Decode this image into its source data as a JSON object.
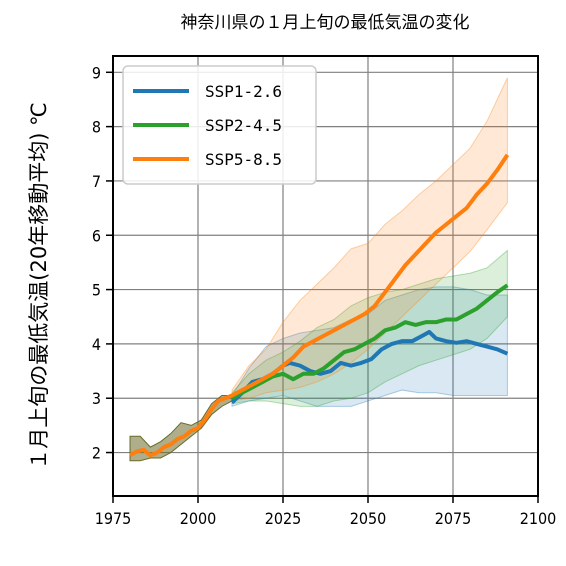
{
  "chart_data": {
    "type": "line",
    "title": "神奈川県の１月上旬の最低気温の変化",
    "ylabel": "１月上旬の最低気温(20年移動平均) ℃",
    "xlabel": "",
    "xlim": [
      1975,
      2100
    ],
    "ylim": [
      1.2,
      9.3
    ],
    "xticks": [
      1975,
      2000,
      2025,
      2050,
      2075,
      2100
    ],
    "yticks": [
      2,
      3,
      4,
      5,
      6,
      7,
      8,
      9
    ],
    "grid": true,
    "legend_position": "top-left",
    "series": [
      {
        "name": "SSP1-2.6",
        "color": "#1f77b4",
        "points": [
          [
            2010,
            2.92
          ],
          [
            2013,
            3.1
          ],
          [
            2016,
            3.3
          ],
          [
            2019,
            3.35
          ],
          [
            2022,
            3.45
          ],
          [
            2025,
            3.6
          ],
          [
            2027,
            3.65
          ],
          [
            2030,
            3.6
          ],
          [
            2033,
            3.5
          ],
          [
            2036,
            3.45
          ],
          [
            2039,
            3.5
          ],
          [
            2042,
            3.65
          ],
          [
            2045,
            3.6
          ],
          [
            2048,
            3.65
          ],
          [
            2051,
            3.72
          ],
          [
            2054,
            3.9
          ],
          [
            2057,
            4.0
          ],
          [
            2060,
            4.05
          ],
          [
            2063,
            4.05
          ],
          [
            2066,
            4.15
          ],
          [
            2068,
            4.22
          ],
          [
            2070,
            4.1
          ],
          [
            2073,
            4.05
          ],
          [
            2076,
            4.02
          ],
          [
            2079,
            4.05
          ],
          [
            2082,
            4.0
          ],
          [
            2085,
            3.95
          ],
          [
            2088,
            3.9
          ],
          [
            2091,
            3.82
          ]
        ],
        "band_upper": [
          [
            2010,
            3.05
          ],
          [
            2015,
            3.55
          ],
          [
            2020,
            3.95
          ],
          [
            2025,
            4.1
          ],
          [
            2030,
            4.2
          ],
          [
            2035,
            4.25
          ],
          [
            2040,
            4.3
          ],
          [
            2045,
            4.45
          ],
          [
            2050,
            4.55
          ],
          [
            2055,
            4.8
          ],
          [
            2060,
            4.9
          ],
          [
            2065,
            5.0
          ],
          [
            2070,
            5.05
          ],
          [
            2075,
            5.05
          ],
          [
            2080,
            5.0
          ],
          [
            2085,
            4.9
          ],
          [
            2091,
            4.9
          ]
        ],
        "band_lower": [
          [
            2010,
            2.85
          ],
          [
            2015,
            2.95
          ],
          [
            2020,
            3.0
          ],
          [
            2025,
            3.05
          ],
          [
            2030,
            2.95
          ],
          [
            2035,
            2.85
          ],
          [
            2040,
            2.85
          ],
          [
            2045,
            2.85
          ],
          [
            2050,
            2.95
          ],
          [
            2055,
            3.05
          ],
          [
            2060,
            3.15
          ],
          [
            2065,
            3.1
          ],
          [
            2070,
            3.1
          ],
          [
            2075,
            3.05
          ],
          [
            2080,
            3.05
          ],
          [
            2085,
            3.05
          ],
          [
            2091,
            3.05
          ]
        ]
      },
      {
        "name": "SSP2-4.5",
        "color": "#2ca02c",
        "points": [
          [
            2010,
            3.0
          ],
          [
            2013,
            3.1
          ],
          [
            2016,
            3.2
          ],
          [
            2019,
            3.3
          ],
          [
            2022,
            3.4
          ],
          [
            2025,
            3.45
          ],
          [
            2028,
            3.35
          ],
          [
            2031,
            3.45
          ],
          [
            2034,
            3.45
          ],
          [
            2037,
            3.55
          ],
          [
            2040,
            3.7
          ],
          [
            2043,
            3.85
          ],
          [
            2046,
            3.9
          ],
          [
            2049,
            4.0
          ],
          [
            2052,
            4.1
          ],
          [
            2055,
            4.25
          ],
          [
            2058,
            4.3
          ],
          [
            2061,
            4.4
          ],
          [
            2064,
            4.35
          ],
          [
            2067,
            4.4
          ],
          [
            2070,
            4.4
          ],
          [
            2073,
            4.45
          ],
          [
            2076,
            4.45
          ],
          [
            2079,
            4.55
          ],
          [
            2082,
            4.65
          ],
          [
            2085,
            4.8
          ],
          [
            2088,
            4.95
          ],
          [
            2091,
            5.08
          ]
        ],
        "band_upper": [
          [
            2010,
            3.1
          ],
          [
            2015,
            3.45
          ],
          [
            2020,
            3.7
          ],
          [
            2025,
            3.85
          ],
          [
            2030,
            4.05
          ],
          [
            2035,
            4.3
          ],
          [
            2040,
            4.45
          ],
          [
            2045,
            4.7
          ],
          [
            2050,
            4.85
          ],
          [
            2055,
            4.95
          ],
          [
            2060,
            5.0
          ],
          [
            2065,
            5.1
          ],
          [
            2070,
            5.2
          ],
          [
            2075,
            5.25
          ],
          [
            2080,
            5.3
          ],
          [
            2085,
            5.4
          ],
          [
            2091,
            5.72
          ]
        ],
        "band_lower": [
          [
            2010,
            2.9
          ],
          [
            2015,
            2.95
          ],
          [
            2020,
            2.95
          ],
          [
            2025,
            2.9
          ],
          [
            2030,
            2.85
          ],
          [
            2035,
            2.85
          ],
          [
            2040,
            2.95
          ],
          [
            2045,
            3.0
          ],
          [
            2050,
            3.1
          ],
          [
            2055,
            3.3
          ],
          [
            2060,
            3.45
          ],
          [
            2065,
            3.6
          ],
          [
            2070,
            3.7
          ],
          [
            2075,
            3.8
          ],
          [
            2080,
            3.9
          ],
          [
            2085,
            4.1
          ],
          [
            2091,
            4.5
          ]
        ]
      },
      {
        "name": "SSP5-8.5",
        "color": "#ff7f0e",
        "points": [
          [
            1980,
            1.95
          ],
          [
            1982,
            2.02
          ],
          [
            1984,
            2.05
          ],
          [
            1986,
            1.95
          ],
          [
            1988,
            2.0
          ],
          [
            1990,
            2.1
          ],
          [
            1992,
            2.15
          ],
          [
            1994,
            2.25
          ],
          [
            1996,
            2.3
          ],
          [
            1998,
            2.4
          ],
          [
            2000,
            2.45
          ],
          [
            2002,
            2.6
          ],
          [
            2004,
            2.8
          ],
          [
            2006,
            2.95
          ],
          [
            2008,
            3.0
          ],
          [
            2010,
            3.05
          ],
          [
            2013,
            3.15
          ],
          [
            2016,
            3.25
          ],
          [
            2019,
            3.35
          ],
          [
            2022,
            3.45
          ],
          [
            2025,
            3.6
          ],
          [
            2028,
            3.75
          ],
          [
            2031,
            3.95
          ],
          [
            2034,
            4.05
          ],
          [
            2037,
            4.15
          ],
          [
            2040,
            4.25
          ],
          [
            2043,
            4.35
          ],
          [
            2046,
            4.45
          ],
          [
            2049,
            4.55
          ],
          [
            2052,
            4.7
          ],
          [
            2055,
            4.95
          ],
          [
            2058,
            5.2
          ],
          [
            2061,
            5.45
          ],
          [
            2064,
            5.65
          ],
          [
            2067,
            5.85
          ],
          [
            2070,
            6.05
          ],
          [
            2073,
            6.2
          ],
          [
            2076,
            6.35
          ],
          [
            2079,
            6.5
          ],
          [
            2082,
            6.75
          ],
          [
            2085,
            6.95
          ],
          [
            2088,
            7.2
          ],
          [
            2091,
            7.48
          ]
        ],
        "band_upper": [
          [
            2010,
            3.15
          ],
          [
            2015,
            3.6
          ],
          [
            2020,
            3.9
          ],
          [
            2025,
            4.4
          ],
          [
            2030,
            4.8
          ],
          [
            2035,
            5.1
          ],
          [
            2040,
            5.4
          ],
          [
            2045,
            5.75
          ],
          [
            2050,
            5.85
          ],
          [
            2055,
            6.2
          ],
          [
            2060,
            6.45
          ],
          [
            2065,
            6.75
          ],
          [
            2070,
            7.0
          ],
          [
            2075,
            7.3
          ],
          [
            2080,
            7.6
          ],
          [
            2085,
            8.1
          ],
          [
            2091,
            8.9
          ]
        ],
        "band_lower": [
          [
            2010,
            2.95
          ],
          [
            2015,
            3.0
          ],
          [
            2020,
            3.1
          ],
          [
            2025,
            3.15
          ],
          [
            2030,
            3.2
          ],
          [
            2035,
            3.3
          ],
          [
            2040,
            3.45
          ],
          [
            2045,
            3.65
          ],
          [
            2050,
            3.9
          ],
          [
            2055,
            4.2
          ],
          [
            2060,
            4.5
          ],
          [
            2065,
            4.8
          ],
          [
            2070,
            5.1
          ],
          [
            2075,
            5.4
          ],
          [
            2080,
            5.7
          ],
          [
            2085,
            6.1
          ],
          [
            2091,
            6.6
          ]
        ]
      }
    ],
    "historical_band": {
      "color": "#6b6b2a",
      "upper": [
        [
          1980,
          2.3
        ],
        [
          1983,
          2.3
        ],
        [
          1986,
          2.1
        ],
        [
          1989,
          2.2
        ],
        [
          1992,
          2.35
        ],
        [
          1995,
          2.55
        ],
        [
          1998,
          2.5
        ],
        [
          2001,
          2.6
        ],
        [
          2004,
          2.9
        ],
        [
          2007,
          3.05
        ],
        [
          2010,
          3.05
        ]
      ],
      "lower": [
        [
          1980,
          1.85
        ],
        [
          1983,
          1.85
        ],
        [
          1986,
          1.9
        ],
        [
          1989,
          1.9
        ],
        [
          1992,
          2.0
        ],
        [
          1995,
          2.15
        ],
        [
          1998,
          2.3
        ],
        [
          2001,
          2.45
        ],
        [
          2004,
          2.7
        ],
        [
          2007,
          2.85
        ],
        [
          2010,
          2.95
        ]
      ]
    }
  }
}
